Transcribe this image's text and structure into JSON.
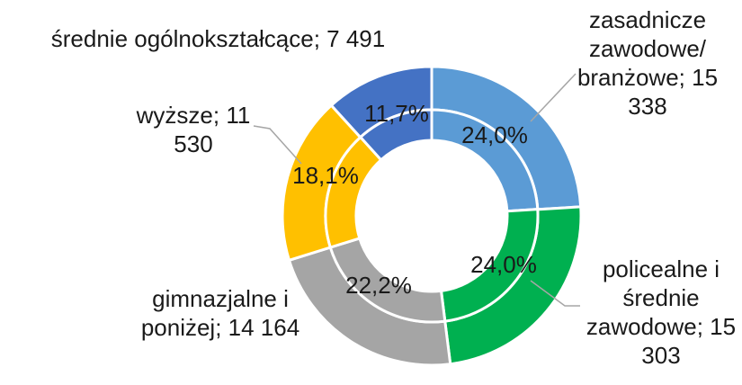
{
  "chart_data": {
    "type": "doughnut",
    "colors": [
      "#5b9bd5",
      "#00b050",
      "#a5a5a5",
      "#ffc000",
      "#4472c4"
    ],
    "series": [
      {
        "values": [
          15338,
          15303,
          14164,
          11530,
          7491
        ],
        "value_labels": [
          "zasadnicze zawodowe/ branżowe; 15 338",
          "policealne i średnie zawodowe; 15 303",
          "gimnazjalne i poniżej; 14 164",
          "wyższe; 11 530",
          "średnie ogólnokształcące; 7 491"
        ]
      },
      {
        "values": [
          24.0,
          24.0,
          22.2,
          18.1,
          11.7
        ],
        "value_labels": [
          "24,0%",
          "24,0%",
          "22,2%",
          "18,1%",
          "11,7%"
        ]
      }
    ]
  }
}
